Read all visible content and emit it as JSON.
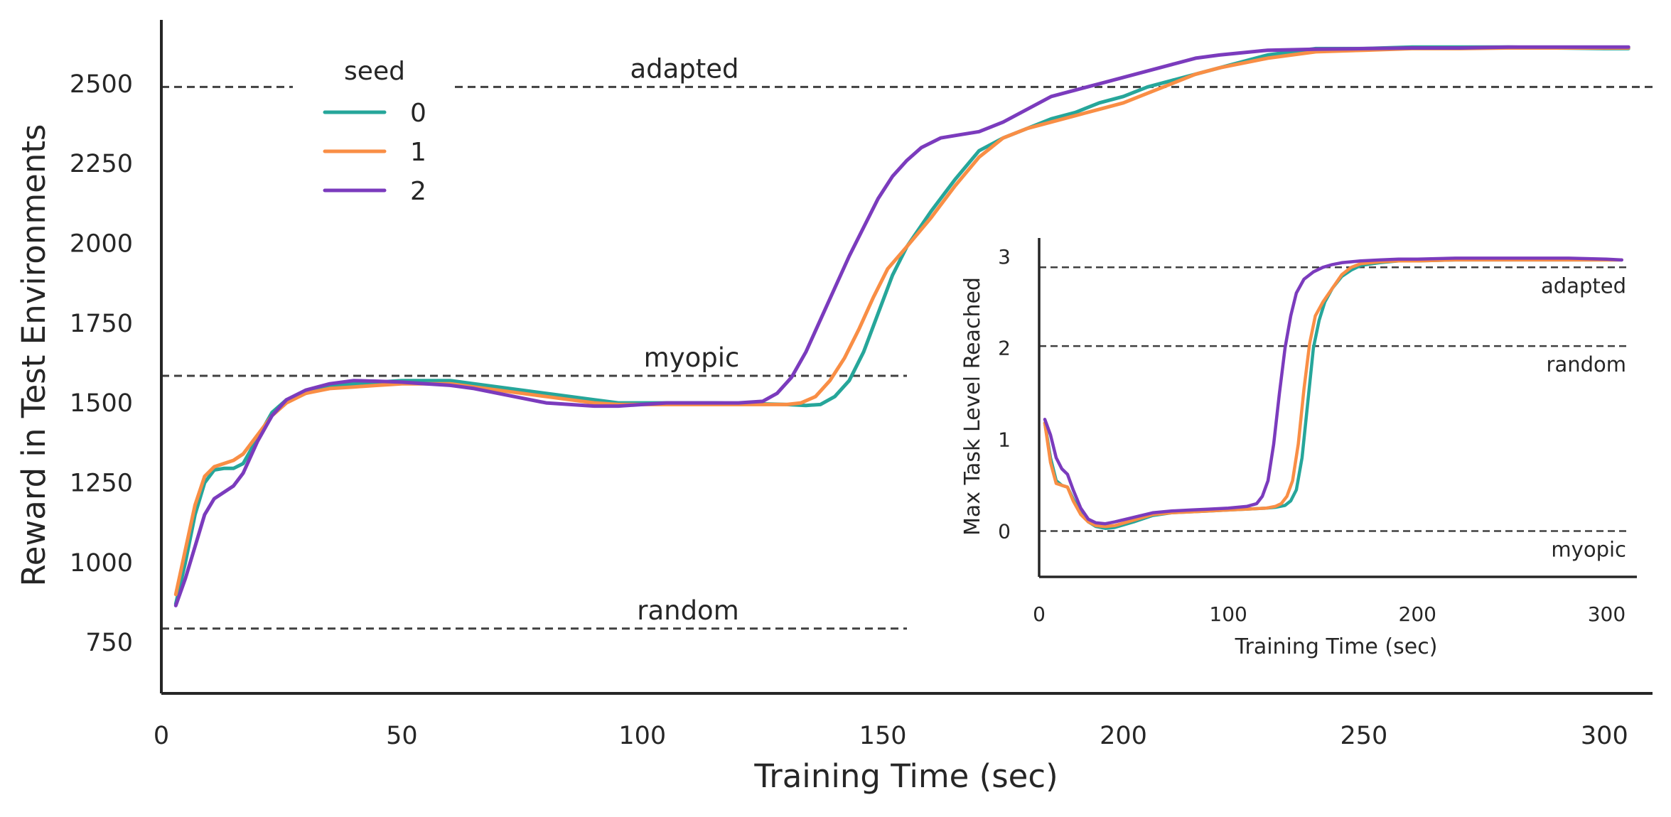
{
  "chart_data": [
    {
      "type": "line",
      "title": "",
      "xlabel": "Training Time (sec)",
      "ylabel": "Reward in Test Environments",
      "xlim": [
        0,
        310
      ],
      "ylim": [
        590,
        2700
      ],
      "x_ticks": [
        0,
        50,
        100,
        150,
        200,
        250,
        300
      ],
      "y_ticks": [
        750,
        1000,
        1250,
        1500,
        1750,
        2000,
        2250,
        2500
      ],
      "grid": false,
      "legend": {
        "title": "seed",
        "placement": "upper-left"
      },
      "colors": [
        "#26a69a",
        "#f98e45",
        "#7b3bbd"
      ],
      "reference_lines": [
        {
          "label": "adapted",
          "y": 2490,
          "x_start": 0,
          "x_end": 310
        },
        {
          "label": "myopic",
          "y": 1585,
          "x_start": 0,
          "x_end": 155
        },
        {
          "label": "random",
          "y": 793,
          "x_start": 0,
          "x_end": 155
        }
      ],
      "series": [
        {
          "name": "0",
          "x": [
            3,
            5,
            7,
            9,
            11,
            13,
            15,
            17,
            20,
            23,
            26,
            30,
            35,
            40,
            45,
            50,
            55,
            60,
            65,
            70,
            75,
            80,
            85,
            90,
            95,
            100,
            105,
            110,
            115,
            120,
            125,
            130,
            134,
            137,
            140,
            143,
            146,
            149,
            152,
            155,
            160,
            165,
            170,
            175,
            180,
            185,
            190,
            195,
            200,
            205,
            210,
            215,
            220,
            230,
            240,
            250,
            260,
            270,
            280,
            290,
            300,
            305
          ],
          "y": [
            870,
            1000,
            1150,
            1250,
            1290,
            1295,
            1295,
            1310,
            1390,
            1470,
            1510,
            1530,
            1550,
            1560,
            1565,
            1570,
            1570,
            1570,
            1560,
            1550,
            1540,
            1530,
            1520,
            1510,
            1500,
            1500,
            1500,
            1500,
            1500,
            1498,
            1497,
            1495,
            1492,
            1495,
            1520,
            1570,
            1660,
            1780,
            1900,
            1990,
            2100,
            2200,
            2290,
            2330,
            2360,
            2390,
            2410,
            2440,
            2460,
            2490,
            2510,
            2530,
            2550,
            2590,
            2610,
            2610,
            2615,
            2615,
            2615,
            2612,
            2610,
            2610
          ]
        },
        {
          "name": "1",
          "x": [
            3,
            5,
            7,
            9,
            11,
            13,
            15,
            17,
            20,
            23,
            26,
            30,
            35,
            40,
            45,
            50,
            55,
            60,
            65,
            70,
            75,
            80,
            85,
            90,
            95,
            100,
            105,
            110,
            115,
            120,
            125,
            130,
            133,
            136,
            139,
            142,
            145,
            148,
            151,
            155,
            160,
            165,
            170,
            175,
            180,
            185,
            190,
            195,
            200,
            205,
            210,
            215,
            220,
            230,
            240,
            250,
            260,
            270,
            280,
            290,
            300,
            305
          ],
          "y": [
            900,
            1040,
            1180,
            1270,
            1300,
            1310,
            1320,
            1340,
            1400,
            1460,
            1500,
            1530,
            1545,
            1550,
            1555,
            1560,
            1560,
            1560,
            1550,
            1540,
            1530,
            1520,
            1510,
            1500,
            1495,
            1495,
            1495,
            1495,
            1495,
            1495,
            1495,
            1495,
            1500,
            1520,
            1570,
            1640,
            1730,
            1830,
            1920,
            1990,
            2080,
            2180,
            2270,
            2330,
            2360,
            2380,
            2400,
            2420,
            2440,
            2470,
            2500,
            2530,
            2550,
            2580,
            2600,
            2605,
            2610,
            2610,
            2612,
            2612,
            2612,
            2612
          ]
        },
        {
          "name": "2",
          "x": [
            3,
            5,
            7,
            9,
            11,
            13,
            15,
            17,
            20,
            23,
            26,
            30,
            35,
            40,
            45,
            50,
            55,
            60,
            65,
            70,
            75,
            80,
            85,
            90,
            95,
            100,
            105,
            110,
            115,
            120,
            125,
            128,
            131,
            134,
            137,
            140,
            143,
            146,
            149,
            152,
            155,
            158,
            162,
            166,
            170,
            175,
            180,
            185,
            190,
            195,
            200,
            205,
            210,
            215,
            220,
            230,
            240,
            250,
            260,
            270,
            280,
            290,
            300,
            305
          ],
          "y": [
            865,
            950,
            1050,
            1150,
            1200,
            1220,
            1240,
            1280,
            1380,
            1460,
            1510,
            1540,
            1560,
            1570,
            1568,
            1565,
            1560,
            1555,
            1545,
            1530,
            1515,
            1500,
            1495,
            1490,
            1490,
            1495,
            1500,
            1500,
            1500,
            1500,
            1505,
            1530,
            1580,
            1660,
            1760,
            1860,
            1960,
            2050,
            2140,
            2210,
            2260,
            2300,
            2330,
            2340,
            2350,
            2380,
            2420,
            2460,
            2480,
            2500,
            2520,
            2540,
            2560,
            2580,
            2590,
            2605,
            2608,
            2610,
            2612,
            2612,
            2615,
            2615,
            2615,
            2615
          ]
        }
      ]
    },
    {
      "type": "line",
      "title": "",
      "xlabel": "Training Time (sec)",
      "ylabel": "Max Task Level Reached",
      "xlim": [
        0,
        316
      ],
      "ylim": [
        -0.5,
        3.2
      ],
      "x_ticks": [
        0,
        100,
        200,
        300
      ],
      "y_ticks": [
        0,
        1,
        2,
        3
      ],
      "grid": false,
      "legend": null,
      "colors": [
        "#26a69a",
        "#f98e45",
        "#7b3bbd"
      ],
      "reference_lines": [
        {
          "label": "adapted",
          "y": 2.88
        },
        {
          "label": "random",
          "y": 2.02
        },
        {
          "label": "myopic",
          "y": 0.0
        }
      ],
      "series": [
        {
          "name": "0",
          "x": [
            3,
            6,
            9,
            12,
            15,
            18,
            22,
            26,
            30,
            35,
            40,
            50,
            60,
            70,
            80,
            90,
            100,
            110,
            120,
            125,
            130,
            133,
            136,
            139,
            142,
            145,
            148,
            151,
            155,
            160,
            165,
            170,
            180,
            190,
            200,
            220,
            240,
            260,
            280,
            300,
            308
          ],
          "y": [
            1.18,
            0.8,
            0.55,
            0.5,
            0.48,
            0.35,
            0.2,
            0.1,
            0.05,
            0.03,
            0.04,
            0.1,
            0.17,
            0.2,
            0.21,
            0.22,
            0.23,
            0.24,
            0.25,
            0.26,
            0.28,
            0.33,
            0.45,
            0.8,
            1.4,
            2.0,
            2.3,
            2.5,
            2.65,
            2.78,
            2.85,
            2.9,
            2.93,
            2.95,
            2.95,
            2.96,
            2.96,
            2.96,
            2.96,
            2.96,
            2.96
          ]
        },
        {
          "name": "1",
          "x": [
            3,
            6,
            9,
            12,
            15,
            18,
            22,
            26,
            30,
            35,
            40,
            50,
            60,
            70,
            80,
            90,
            100,
            110,
            120,
            125,
            128,
            131,
            134,
            137,
            140,
            143,
            146,
            150,
            155,
            160,
            165,
            170,
            180,
            190,
            200,
            220,
            240,
            260,
            280,
            300,
            308
          ],
          "y": [
            1.18,
            0.75,
            0.52,
            0.5,
            0.48,
            0.33,
            0.18,
            0.1,
            0.06,
            0.05,
            0.06,
            0.12,
            0.18,
            0.2,
            0.21,
            0.22,
            0.23,
            0.24,
            0.25,
            0.27,
            0.3,
            0.38,
            0.55,
            0.95,
            1.55,
            2.05,
            2.35,
            2.5,
            2.65,
            2.8,
            2.88,
            2.92,
            2.94,
            2.95,
            2.95,
            2.96,
            2.96,
            2.96,
            2.96,
            2.96,
            2.96
          ]
        },
        {
          "name": "2",
          "x": [
            3,
            6,
            9,
            12,
            15,
            18,
            22,
            26,
            30,
            35,
            40,
            50,
            60,
            70,
            80,
            90,
            100,
            110,
            115,
            118,
            121,
            124,
            127,
            130,
            133,
            136,
            140,
            145,
            150,
            155,
            160,
            165,
            170,
            180,
            190,
            200,
            220,
            240,
            260,
            280,
            300,
            308
          ],
          "y": [
            1.22,
            1.05,
            0.8,
            0.68,
            0.62,
            0.45,
            0.25,
            0.13,
            0.09,
            0.08,
            0.1,
            0.15,
            0.2,
            0.22,
            0.23,
            0.24,
            0.25,
            0.27,
            0.3,
            0.38,
            0.55,
            0.95,
            1.5,
            2.0,
            2.35,
            2.6,
            2.75,
            2.83,
            2.88,
            2.91,
            2.93,
            2.94,
            2.95,
            2.96,
            2.97,
            2.97,
            2.98,
            2.98,
            2.98,
            2.98,
            2.97,
            2.96
          ]
        }
      ]
    }
  ]
}
